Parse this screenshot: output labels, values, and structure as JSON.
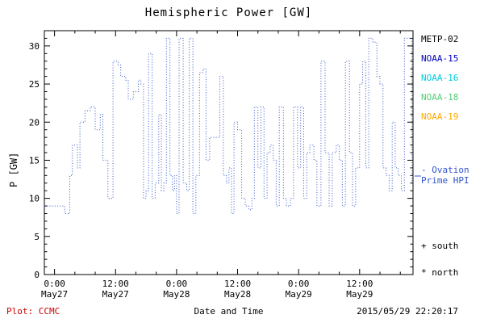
{
  "chart_data": {
    "type": "line",
    "step": true,
    "line_style": "dotted",
    "title": "Hemispheric Power [GW]",
    "xlabel": "Date and Time",
    "ylabel": "P [GW]",
    "xlim": [
      -2,
      70.5
    ],
    "ylim": [
      0,
      32
    ],
    "yticks": [
      0,
      5,
      10,
      15,
      20,
      25,
      30
    ],
    "y_minor_step": 1,
    "x_minor_step": 4,
    "xticks": [
      {
        "pos": 0,
        "time": "0:00",
        "date": "May27"
      },
      {
        "pos": 12,
        "time": "12:00",
        "date": "May27"
      },
      {
        "pos": 24,
        "time": "0:00",
        "date": "May28"
      },
      {
        "pos": 36,
        "time": "12:00",
        "date": "May28"
      },
      {
        "pos": 48,
        "time": "0:00",
        "date": "May29"
      },
      {
        "pos": 60,
        "time": "12:00",
        "date": "May29"
      }
    ],
    "series": [
      {
        "name": "Ovation Prime HPI",
        "color": "#3355CC",
        "points": [
          [
            -2,
            9
          ],
          [
            2,
            8
          ],
          [
            3,
            13
          ],
          [
            3.5,
            17
          ],
          [
            4.5,
            14
          ],
          [
            5,
            20
          ],
          [
            6,
            21.5
          ],
          [
            7,
            22
          ],
          [
            8,
            19
          ],
          [
            9,
            21
          ],
          [
            9.5,
            15
          ],
          [
            10.5,
            10
          ],
          [
            11.5,
            28
          ],
          [
            12.5,
            27.5
          ],
          [
            13,
            26
          ],
          [
            14,
            25.5
          ],
          [
            14.5,
            23
          ],
          [
            15.5,
            24
          ],
          [
            16.5,
            25.5
          ],
          [
            17,
            25
          ],
          [
            17.5,
            10
          ],
          [
            18,
            11
          ],
          [
            18.5,
            29
          ],
          [
            19.2,
            10
          ],
          [
            19.8,
            12
          ],
          [
            20.5,
            21
          ],
          [
            21,
            11
          ],
          [
            21.5,
            12
          ],
          [
            22,
            31
          ],
          [
            22.7,
            13
          ],
          [
            23.2,
            11
          ],
          [
            23.6,
            13
          ],
          [
            24,
            8
          ],
          [
            24.5,
            31
          ],
          [
            25.3,
            12
          ],
          [
            26,
            11
          ],
          [
            26.5,
            31
          ],
          [
            27.2,
            8
          ],
          [
            27.8,
            13
          ],
          [
            28.5,
            26.5
          ],
          [
            29.2,
            27
          ],
          [
            29.8,
            15
          ],
          [
            30.5,
            18
          ],
          [
            32.5,
            26
          ],
          [
            33.2,
            13
          ],
          [
            33.8,
            12
          ],
          [
            34.3,
            14
          ],
          [
            34.8,
            8
          ],
          [
            35.3,
            20
          ],
          [
            36,
            19
          ],
          [
            36.8,
            10
          ],
          [
            37.5,
            9
          ],
          [
            38.2,
            8.5
          ],
          [
            38.8,
            10
          ],
          [
            39.3,
            22
          ],
          [
            40,
            14
          ],
          [
            40.6,
            22
          ],
          [
            41.2,
            10
          ],
          [
            41.8,
            16
          ],
          [
            42.4,
            17
          ],
          [
            43,
            15
          ],
          [
            43.6,
            9
          ],
          [
            44.2,
            22
          ],
          [
            45,
            10
          ],
          [
            45.6,
            9
          ],
          [
            46.4,
            10
          ],
          [
            47,
            22
          ],
          [
            47.8,
            14
          ],
          [
            48.4,
            22
          ],
          [
            49,
            10
          ],
          [
            49.6,
            16
          ],
          [
            50.2,
            17
          ],
          [
            51,
            15
          ],
          [
            51.6,
            9
          ],
          [
            52.4,
            28
          ],
          [
            53.2,
            16
          ],
          [
            54,
            9
          ],
          [
            54.6,
            16
          ],
          [
            55.4,
            17
          ],
          [
            56,
            15
          ],
          [
            56.6,
            9
          ],
          [
            57.2,
            28
          ],
          [
            58,
            16
          ],
          [
            58.6,
            9
          ],
          [
            59.2,
            14
          ],
          [
            60,
            25
          ],
          [
            60.6,
            28
          ],
          [
            61.2,
            14
          ],
          [
            61.8,
            31
          ],
          [
            62.6,
            30.5
          ],
          [
            63.4,
            26
          ],
          [
            64,
            25
          ],
          [
            64.6,
            14
          ],
          [
            65.2,
            13
          ],
          [
            65.8,
            11
          ],
          [
            66.4,
            20
          ],
          [
            67,
            14
          ],
          [
            67.6,
            13
          ],
          [
            68.2,
            11
          ],
          [
            68.8,
            31
          ],
          [
            69.8,
            31
          ],
          [
            70.3,
            12
          ]
        ]
      }
    ]
  },
  "legend": {
    "satellites": [
      {
        "label": "METP-02",
        "color": "#000000"
      },
      {
        "label": "NOAA-15",
        "color": "#0000BB"
      },
      {
        "label": "NOAA-16",
        "color": "#00CCDD"
      },
      {
        "label": "NOAA-18",
        "color": "#55CC77"
      },
      {
        "label": "NOAA-19",
        "color": "#FFAA00"
      }
    ],
    "model_line1": "- Ovation",
    "model_line2": "Prime HPI",
    "model_color": "#3355CC",
    "south_label": "+ south",
    "north_label": "* north"
  },
  "footer": {
    "credit": "Plot: CCMC",
    "credit_color": "#CC0000",
    "timestamp": "2015/05/29 22:20:17"
  }
}
